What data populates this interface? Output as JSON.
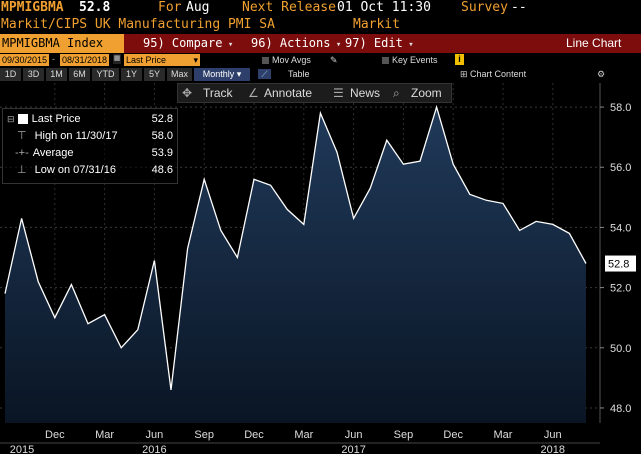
{
  "header": {
    "ticker": "MPMIGBMA",
    "last_value": "52.8",
    "for_label": "For",
    "for_value": "Aug",
    "next_release_label": "Next Release",
    "next_release_value": "01 Oct 11:30",
    "survey_label": "Survey",
    "survey_value": "--",
    "description": "Markit/CIPS UK Manufacturing PMI SA",
    "source": "Markit"
  },
  "command_bar": {
    "security": "MPMIGBMA Index",
    "compare": "95) Compare",
    "actions": "96) Actions",
    "edit": "97) Edit",
    "view": "Line Chart"
  },
  "options_bar": {
    "start_date": "09/30/2015",
    "end_date": "08/31/2018",
    "field": "Last Price",
    "mov_avgs": "Mov Avgs",
    "key_events": "Key Events",
    "info_icon": "i",
    "chart_content": "Chart Content"
  },
  "periods": [
    "1D",
    "3D",
    "1M",
    "6M",
    "YTD",
    "1Y",
    "5Y",
    "Max"
  ],
  "frequency": "Monthly",
  "table_label": "Table",
  "toolbar": {
    "track": "Track",
    "annotate": "Annotate",
    "news": "News",
    "zoom": "Zoom"
  },
  "legend": {
    "last_price_label": "Last Price",
    "last_price_value": "52.8",
    "high_label": "High on 11/30/17",
    "high_value": "58.0",
    "average_label": "Average",
    "average_value": "53.9",
    "low_label": "Low on 07/31/16",
    "low_value": "48.6"
  },
  "colors": {
    "amber": "#f0a030",
    "command_bar": "#7d0d0d",
    "area_top": "#1f3550",
    "line": "#ffffff"
  },
  "chart_data": {
    "type": "area",
    "x": [
      "2015-09",
      "2015-10",
      "2015-11",
      "2015-12",
      "2016-01",
      "2016-02",
      "2016-03",
      "2016-04",
      "2016-05",
      "2016-06",
      "2016-07",
      "2016-08",
      "2016-09",
      "2016-10",
      "2016-11",
      "2016-12",
      "2017-01",
      "2017-02",
      "2017-03",
      "2017-04",
      "2017-05",
      "2017-06",
      "2017-07",
      "2017-08",
      "2017-09",
      "2017-10",
      "2017-11",
      "2017-12",
      "2018-01",
      "2018-02",
      "2018-03",
      "2018-04",
      "2018-05",
      "2018-06",
      "2018-07",
      "2018-08"
    ],
    "series": [
      {
        "values": [
          51.8,
          54.3,
          52.2,
          51.0,
          52.1,
          50.8,
          51.1,
          50.0,
          50.6,
          52.9,
          48.6,
          53.3,
          55.6,
          53.9,
          53.0,
          55.6,
          55.4,
          54.6,
          54.1,
          57.8,
          56.5,
          54.3,
          55.3,
          56.9,
          56.1,
          56.2,
          58.0,
          56.1,
          55.1,
          54.9,
          54.8,
          53.9,
          54.2,
          54.1,
          53.8,
          52.8
        ]
      }
    ],
    "y_ticks": [
      "48.0",
      "50.0",
      "52.0",
      "54.0",
      "56.0",
      "58.0"
    ],
    "ylim": [
      47.5,
      58.8
    ],
    "x_month_labels": [
      {
        "label": "Dec",
        "x": "2015-12"
      },
      {
        "label": "Mar",
        "x": "2016-03"
      },
      {
        "label": "Jun",
        "x": "2016-06"
      },
      {
        "label": "Sep",
        "x": "2016-09"
      },
      {
        "label": "Dec",
        "x": "2016-12"
      },
      {
        "label": "Mar",
        "x": "2017-03"
      },
      {
        "label": "Jun",
        "x": "2017-06"
      },
      {
        "label": "Sep",
        "x": "2017-09"
      },
      {
        "label": "Dec",
        "x": "2017-12"
      },
      {
        "label": "Mar",
        "x": "2018-03"
      },
      {
        "label": "Jun",
        "x": "2018-06"
      }
    ],
    "x_year_labels": [
      {
        "label": "2015",
        "x": "2015-09"
      },
      {
        "label": "2016",
        "x": "2016-06"
      },
      {
        "label": "2017",
        "x": "2017-06"
      },
      {
        "label": "2018",
        "x": "2018-06"
      }
    ],
    "last_value_label": "52.8",
    "grid": true
  }
}
